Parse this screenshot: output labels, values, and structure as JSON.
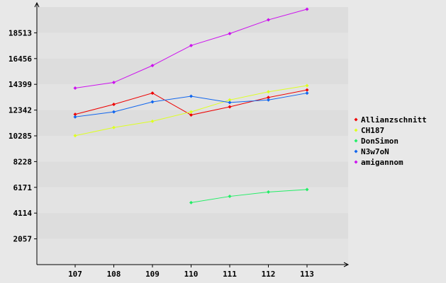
{
  "chart_data": {
    "type": "line",
    "title": "",
    "xlabel": "",
    "ylabel": "",
    "categories": [
      "107",
      "108",
      "109",
      "110",
      "111",
      "112",
      "113"
    ],
    "yticks": [
      "2057",
      "4114",
      "6171",
      "8228",
      "10285",
      "12342",
      "14399",
      "16456",
      "18513"
    ],
    "ylim": [
      0,
      20570
    ],
    "grid": true,
    "legend_position": "right",
    "series": [
      {
        "name": "Allianzschnitt",
        "color": "#ee0000",
        "values": [
          12000,
          12800,
          13700,
          11950,
          12600,
          13350,
          13950
        ]
      },
      {
        "name": "CH187",
        "color": "#ddff22",
        "values": [
          10300,
          10950,
          11450,
          12200,
          13150,
          13800,
          14300
        ]
      },
      {
        "name": "DonSimon",
        "color": "#22ee66",
        "values": [
          null,
          null,
          null,
          4950,
          5450,
          5800,
          6000
        ]
      },
      {
        "name": "N3w7oN",
        "color": "#1166ee",
        "values": [
          11800,
          12200,
          13000,
          13450,
          12950,
          13150,
          13700
        ]
      },
      {
        "name": "amigannom",
        "color": "#cc11ee",
        "values": [
          14100,
          14550,
          15900,
          17500,
          18450,
          19550,
          20400
        ]
      }
    ]
  }
}
